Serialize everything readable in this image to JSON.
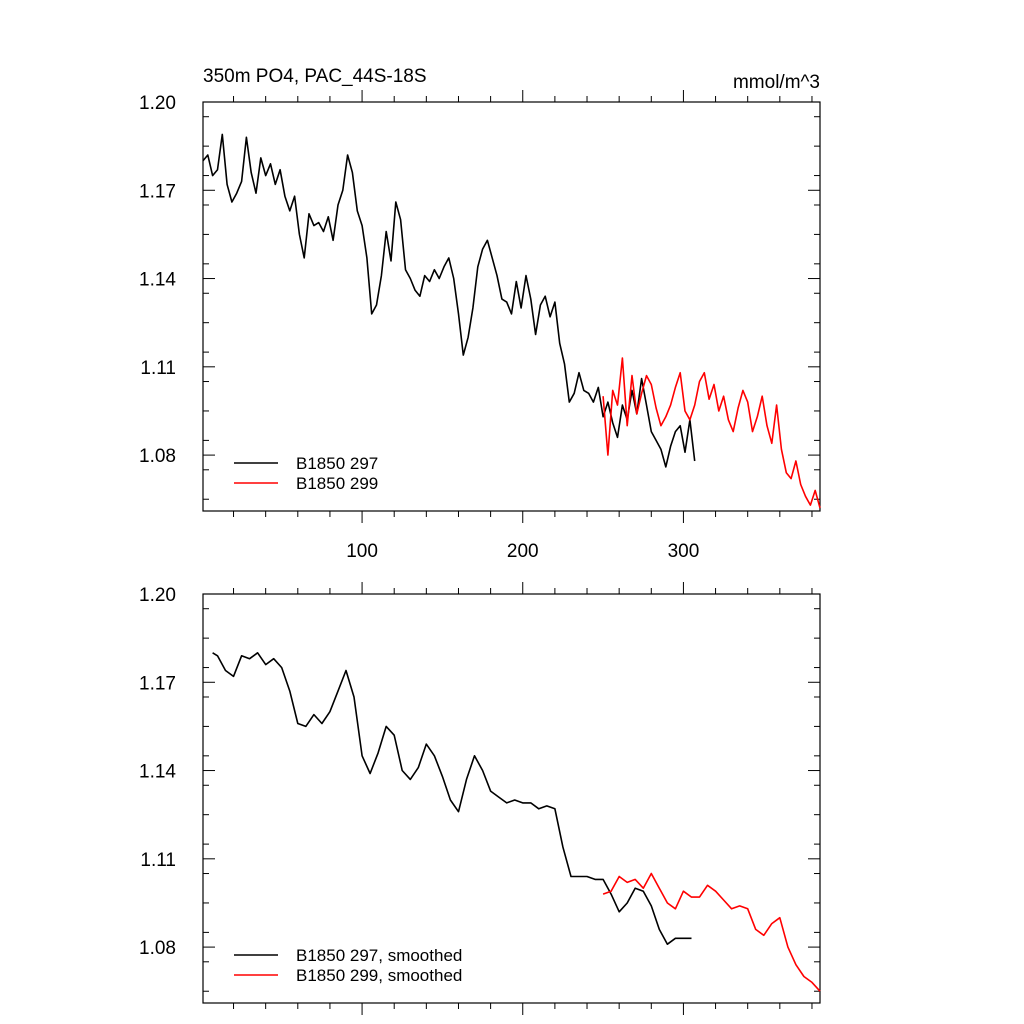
{
  "chart_data": [
    {
      "type": "line",
      "title": "350m PO4, PAC_44S-18S",
      "units": "mmol/m^3",
      "xlabel": "",
      "ylabel": "",
      "xlim": [
        1,
        385
      ],
      "ylim": [
        1.061,
        1.2
      ],
      "y_ticks": [
        "1.20",
        "1.17",
        "1.14",
        "1.11",
        "1.08"
      ],
      "y_tick_values": [
        1.2,
        1.17,
        1.14,
        1.11,
        1.08
      ],
      "x_ticks": [
        "100",
        "200",
        "300"
      ],
      "x_tick_values": [
        100,
        200,
        300
      ],
      "legend_position": "bottom-left",
      "grid": false,
      "series": [
        {
          "name": "B1850 297",
          "color": "#000000",
          "x": [
            1,
            4,
            7,
            10,
            13,
            16,
            19,
            22,
            25,
            28,
            31,
            34,
            37,
            40,
            43,
            46,
            49,
            52,
            55,
            58,
            61,
            64,
            67,
            70,
            73,
            76,
            79,
            82,
            85,
            88,
            91,
            94,
            97,
            100,
            103,
            106,
            109,
            112,
            115,
            118,
            121,
            124,
            127,
            130,
            133,
            136,
            139,
            142,
            145,
            148,
            151,
            154,
            157,
            160,
            163,
            166,
            169,
            172,
            175,
            178,
            181,
            184,
            187,
            190,
            193,
            196,
            199,
            202,
            205,
            208,
            211,
            214,
            217,
            220,
            223,
            226,
            229,
            232,
            235,
            238,
            241,
            244,
            247,
            250,
            253,
            256,
            259,
            262,
            265,
            268,
            271,
            274,
            277,
            280,
            283,
            286,
            289,
            292,
            295,
            298,
            301,
            304,
            307
          ],
          "y": [
            1.18,
            1.182,
            1.175,
            1.177,
            1.189,
            1.172,
            1.166,
            1.169,
            1.173,
            1.188,
            1.176,
            1.169,
            1.181,
            1.175,
            1.179,
            1.172,
            1.177,
            1.168,
            1.163,
            1.168,
            1.155,
            1.147,
            1.162,
            1.158,
            1.159,
            1.156,
            1.161,
            1.153,
            1.165,
            1.17,
            1.182,
            1.176,
            1.163,
            1.158,
            1.147,
            1.128,
            1.131,
            1.141,
            1.156,
            1.146,
            1.166,
            1.16,
            1.143,
            1.14,
            1.136,
            1.134,
            1.141,
            1.139,
            1.143,
            1.14,
            1.144,
            1.147,
            1.14,
            1.128,
            1.114,
            1.12,
            1.13,
            1.144,
            1.15,
            1.153,
            1.147,
            1.141,
            1.133,
            1.132,
            1.128,
            1.139,
            1.13,
            1.141,
            1.133,
            1.121,
            1.131,
            1.134,
            1.127,
            1.132,
            1.118,
            1.111,
            1.098,
            1.101,
            1.108,
            1.102,
            1.101,
            1.098,
            1.103,
            1.093,
            1.098,
            1.091,
            1.086,
            1.097,
            1.092,
            1.102,
            1.094,
            1.106,
            1.097,
            1.088,
            1.085,
            1.082,
            1.076,
            1.083,
            1.088,
            1.09,
            1.081,
            1.092,
            1.078
          ]
        },
        {
          "name": "B1850 299",
          "color": "#ff0000",
          "x": [
            250,
            253,
            256,
            259,
            262,
            265,
            268,
            271,
            274,
            277,
            280,
            283,
            286,
            289,
            292,
            295,
            298,
            301,
            304,
            307,
            310,
            313,
            316,
            319,
            322,
            325,
            328,
            331,
            334,
            337,
            340,
            343,
            346,
            349,
            352,
            355,
            358,
            361,
            364,
            367,
            370,
            373,
            376,
            379,
            382,
            385
          ],
          "y": [
            1.1,
            1.08,
            1.102,
            1.097,
            1.113,
            1.09,
            1.107,
            1.094,
            1.101,
            1.107,
            1.104,
            1.096,
            1.09,
            1.093,
            1.097,
            1.103,
            1.108,
            1.095,
            1.092,
            1.097,
            1.105,
            1.108,
            1.099,
            1.104,
            1.095,
            1.1,
            1.092,
            1.088,
            1.096,
            1.102,
            1.098,
            1.088,
            1.093,
            1.1,
            1.09,
            1.084,
            1.097,
            1.082,
            1.074,
            1.072,
            1.078,
            1.07,
            1.066,
            1.063,
            1.068,
            1.062
          ]
        }
      ]
    },
    {
      "type": "line",
      "title": "",
      "xlabel": "",
      "ylabel": "",
      "xlim": [
        1,
        385
      ],
      "ylim": [
        1.061,
        1.2
      ],
      "y_ticks": [
        "1.20",
        "1.17",
        "1.14",
        "1.11",
        "1.08"
      ],
      "y_tick_values": [
        1.2,
        1.17,
        1.14,
        1.11,
        1.08
      ],
      "legend_position": "bottom-left",
      "grid": false,
      "series": [
        {
          "name": "B1850 297, smoothed",
          "color": "#000000",
          "x": [
            7,
            10,
            15,
            20,
            25,
            30,
            35,
            40,
            45,
            50,
            55,
            60,
            65,
            70,
            75,
            80,
            85,
            90,
            95,
            100,
            105,
            110,
            115,
            120,
            125,
            130,
            135,
            140,
            145,
            150,
            155,
            160,
            165,
            170,
            175,
            180,
            185,
            190,
            195,
            200,
            205,
            210,
            215,
            220,
            225,
            230,
            235,
            240,
            245,
            250,
            255,
            260,
            265,
            270,
            275,
            280,
            285,
            290,
            295,
            300,
            305
          ],
          "y": [
            1.18,
            1.179,
            1.174,
            1.172,
            1.179,
            1.178,
            1.18,
            1.176,
            1.178,
            1.175,
            1.167,
            1.156,
            1.155,
            1.159,
            1.156,
            1.16,
            1.167,
            1.174,
            1.165,
            1.145,
            1.139,
            1.146,
            1.155,
            1.152,
            1.14,
            1.137,
            1.141,
            1.149,
            1.145,
            1.138,
            1.13,
            1.126,
            1.137,
            1.145,
            1.14,
            1.133,
            1.131,
            1.129,
            1.13,
            1.129,
            1.129,
            1.127,
            1.128,
            1.127,
            1.114,
            1.104,
            1.104,
            1.104,
            1.103,
            1.103,
            1.098,
            1.092,
            1.095,
            1.1,
            1.099,
            1.094,
            1.086,
            1.081,
            1.083,
            1.083,
            1.083
          ]
        },
        {
          "name": "B1850 299, smoothed",
          "color": "#ff0000",
          "x": [
            250,
            255,
            260,
            265,
            270,
            275,
            280,
            285,
            290,
            295,
            300,
            305,
            310,
            315,
            320,
            325,
            330,
            335,
            340,
            345,
            350,
            355,
            360,
            365,
            370,
            375,
            380,
            385
          ],
          "y": [
            1.098,
            1.099,
            1.104,
            1.102,
            1.103,
            1.1,
            1.105,
            1.1,
            1.095,
            1.093,
            1.099,
            1.097,
            1.097,
            1.101,
            1.099,
            1.096,
            1.093,
            1.094,
            1.093,
            1.086,
            1.084,
            1.088,
            1.09,
            1.08,
            1.074,
            1.07,
            1.068,
            1.065
          ]
        }
      ]
    }
  ]
}
